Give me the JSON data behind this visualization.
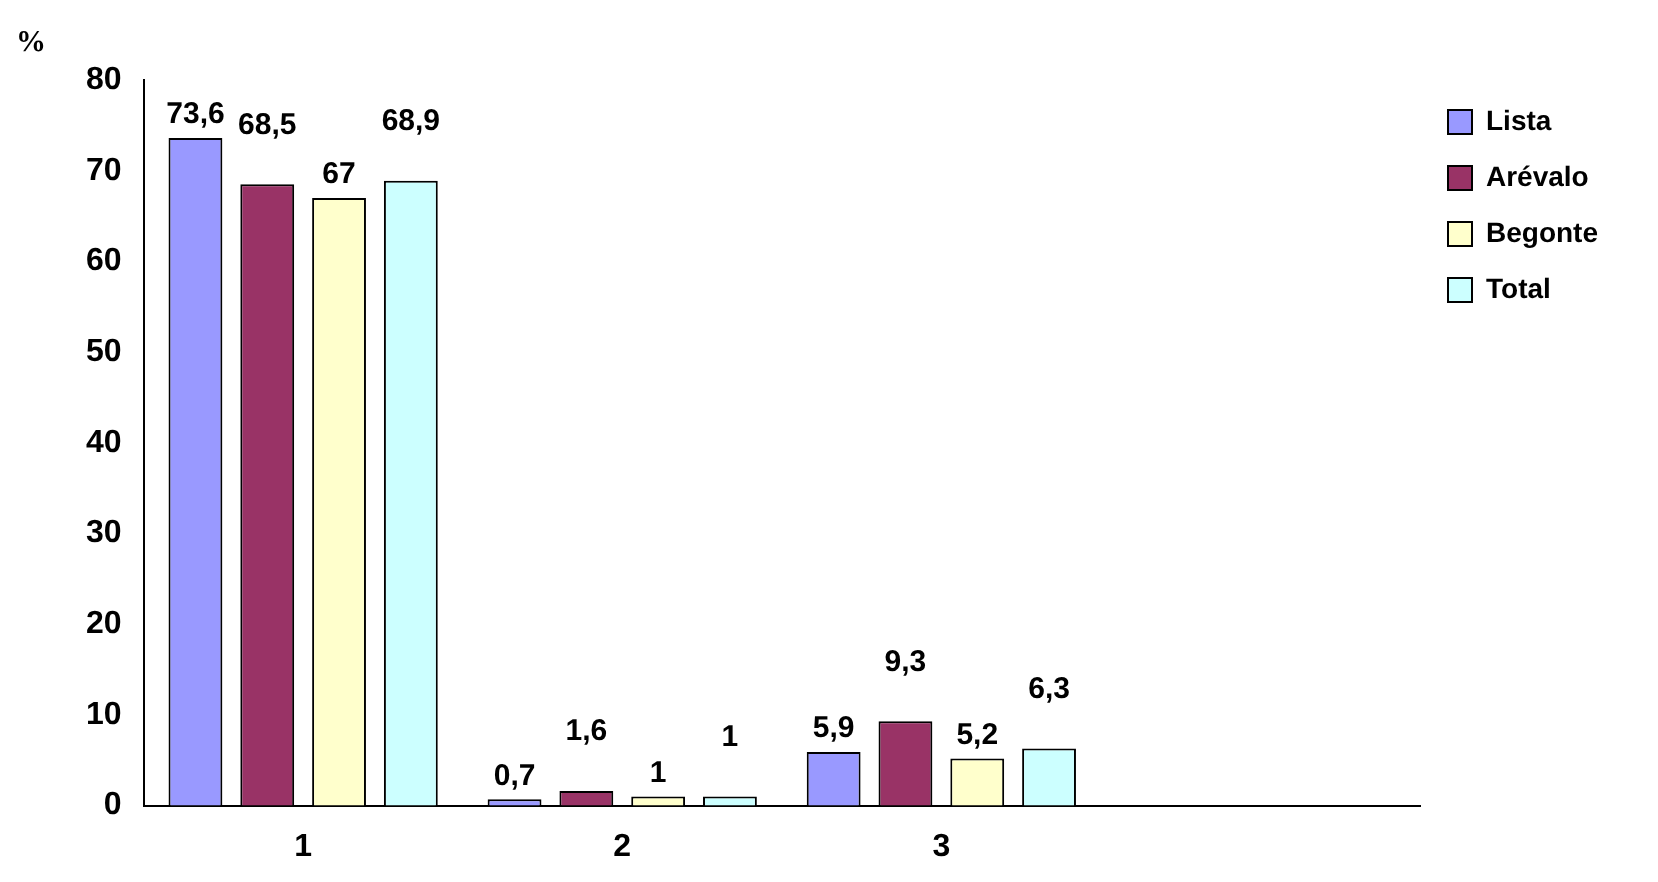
{
  "chart_data": {
    "type": "bar",
    "ylabel": "%",
    "categories": [
      "1",
      "2",
      "3",
      null
    ],
    "series": [
      {
        "name": "Lista",
        "color": "#9999ff",
        "values": [
          73.6,
          0.7,
          5.9,
          null
        ],
        "value_labels": [
          "73,6",
          "0,7",
          "5,9",
          null
        ]
      },
      {
        "name": "Arévalo",
        "color": "#993366",
        "values": [
          68.5,
          1.6,
          9.3,
          null
        ],
        "value_labels": [
          "68,5",
          "1,6",
          "9,3",
          null
        ]
      },
      {
        "name": "Begonte",
        "color": "#ffffcc",
        "values": [
          67,
          1,
          5.2,
          null
        ],
        "value_labels": [
          "67",
          "1",
          "5,2",
          null
        ]
      },
      {
        "name": "Total",
        "color": "#ccffff",
        "values": [
          68.9,
          1,
          6.3,
          null
        ],
        "value_labels": [
          "68,9",
          "1",
          "6,3",
          null
        ]
      }
    ],
    "ylim": [
      0,
      80
    ],
    "yticks": [
      0,
      10,
      20,
      30,
      40,
      50,
      60,
      70,
      80
    ],
    "grid": false,
    "legend": "right"
  }
}
